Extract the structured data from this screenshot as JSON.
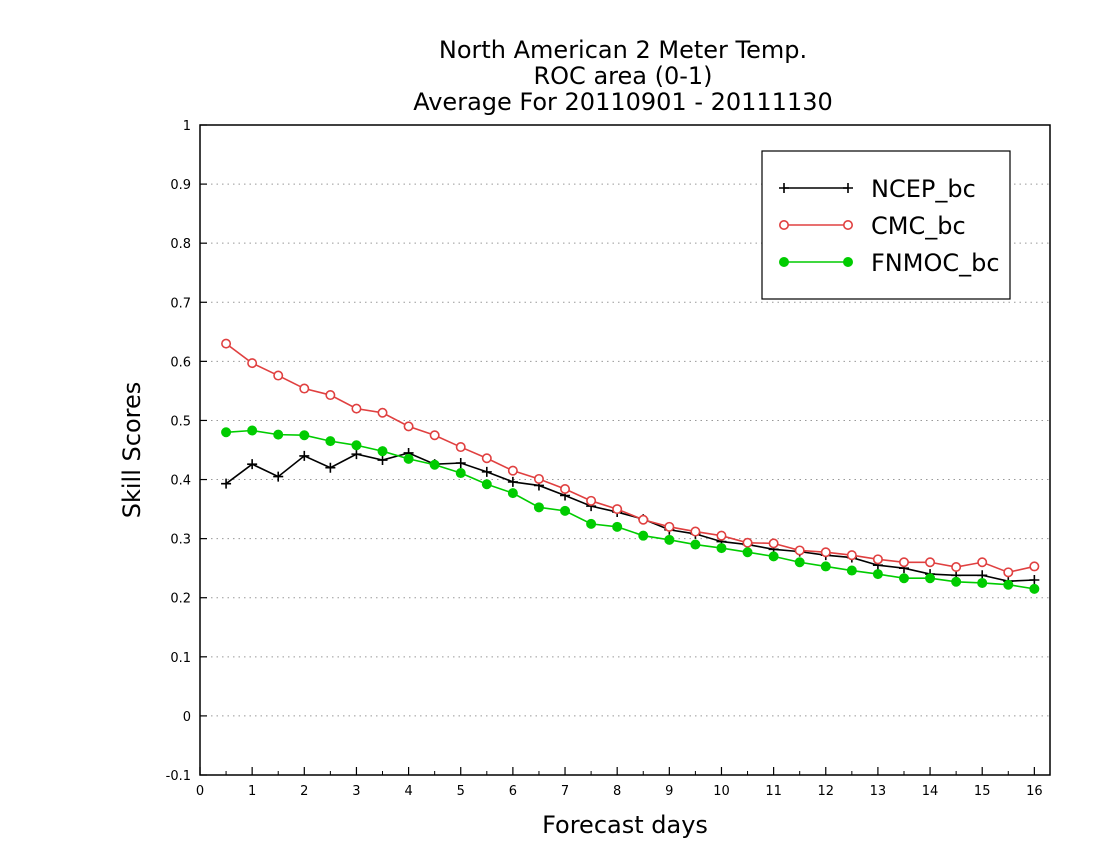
{
  "chart_data": {
    "type": "line",
    "title_lines": [
      "North American 2 Meter Temp.",
      "ROC area (0-1)",
      "Average For 20110901 - 20111130"
    ],
    "xlabel": "Forecast days",
    "ylabel": "Skill Scores",
    "xlim": [
      0,
      16.3
    ],
    "ylim": [
      -0.1,
      1
    ],
    "x_ticks": [
      "0",
      "1",
      "2",
      "3",
      "4",
      "5",
      "6",
      "7",
      "8",
      "9",
      "10",
      "11",
      "12",
      "13",
      "14",
      "15",
      "16"
    ],
    "y_ticks": [
      "-0.1",
      "0",
      "0.1",
      "0.2",
      "0.3",
      "0.4",
      "0.5",
      "0.6",
      "0.7",
      "0.8",
      "0.9",
      "1"
    ],
    "grid": "horizontal dotted",
    "legend_position": "top-right",
    "x": [
      0.5,
      1,
      1.5,
      2,
      2.5,
      3,
      3.5,
      4,
      4.5,
      5,
      5.5,
      6,
      6.5,
      7,
      7.5,
      8,
      8.5,
      9,
      9.5,
      10,
      10.5,
      11,
      11.5,
      12,
      12.5,
      13,
      13.5,
      14,
      14.5,
      15,
      15.5,
      16
    ],
    "series": [
      {
        "name": "NCEP_bc",
        "color": "#000000",
        "marker": "plus",
        "values": [
          0.393,
          0.426,
          0.405,
          0.44,
          0.42,
          0.443,
          0.433,
          0.445,
          0.426,
          0.428,
          0.413,
          0.396,
          0.39,
          0.373,
          0.355,
          0.345,
          0.333,
          0.315,
          0.308,
          0.295,
          0.29,
          0.282,
          0.278,
          0.272,
          0.268,
          0.255,
          0.25,
          0.24,
          0.238,
          0.238,
          0.228,
          0.23
        ]
      },
      {
        "name": "CMC_bc",
        "color": "#e04040",
        "marker": "open-circle",
        "values": [
          0.63,
          0.597,
          0.576,
          0.554,
          0.543,
          0.52,
          0.513,
          0.49,
          0.475,
          0.455,
          0.436,
          0.415,
          0.401,
          0.384,
          0.364,
          0.35,
          0.332,
          0.32,
          0.312,
          0.305,
          0.293,
          0.292,
          0.28,
          0.277,
          0.272,
          0.265,
          0.26,
          0.26,
          0.252,
          0.26,
          0.243,
          0.253
        ]
      },
      {
        "name": "FNMOC_bc",
        "color": "#00cc00",
        "marker": "filled-circle",
        "values": [
          0.48,
          0.483,
          0.476,
          0.475,
          0.465,
          0.458,
          0.448,
          0.435,
          0.425,
          0.411,
          0.392,
          0.377,
          0.353,
          0.347,
          0.325,
          0.32,
          0.305,
          0.298,
          0.29,
          0.284,
          0.277,
          0.27,
          0.26,
          0.253,
          0.246,
          0.24,
          0.233,
          0.233,
          0.227,
          0.225,
          0.222,
          0.215
        ]
      }
    ]
  }
}
